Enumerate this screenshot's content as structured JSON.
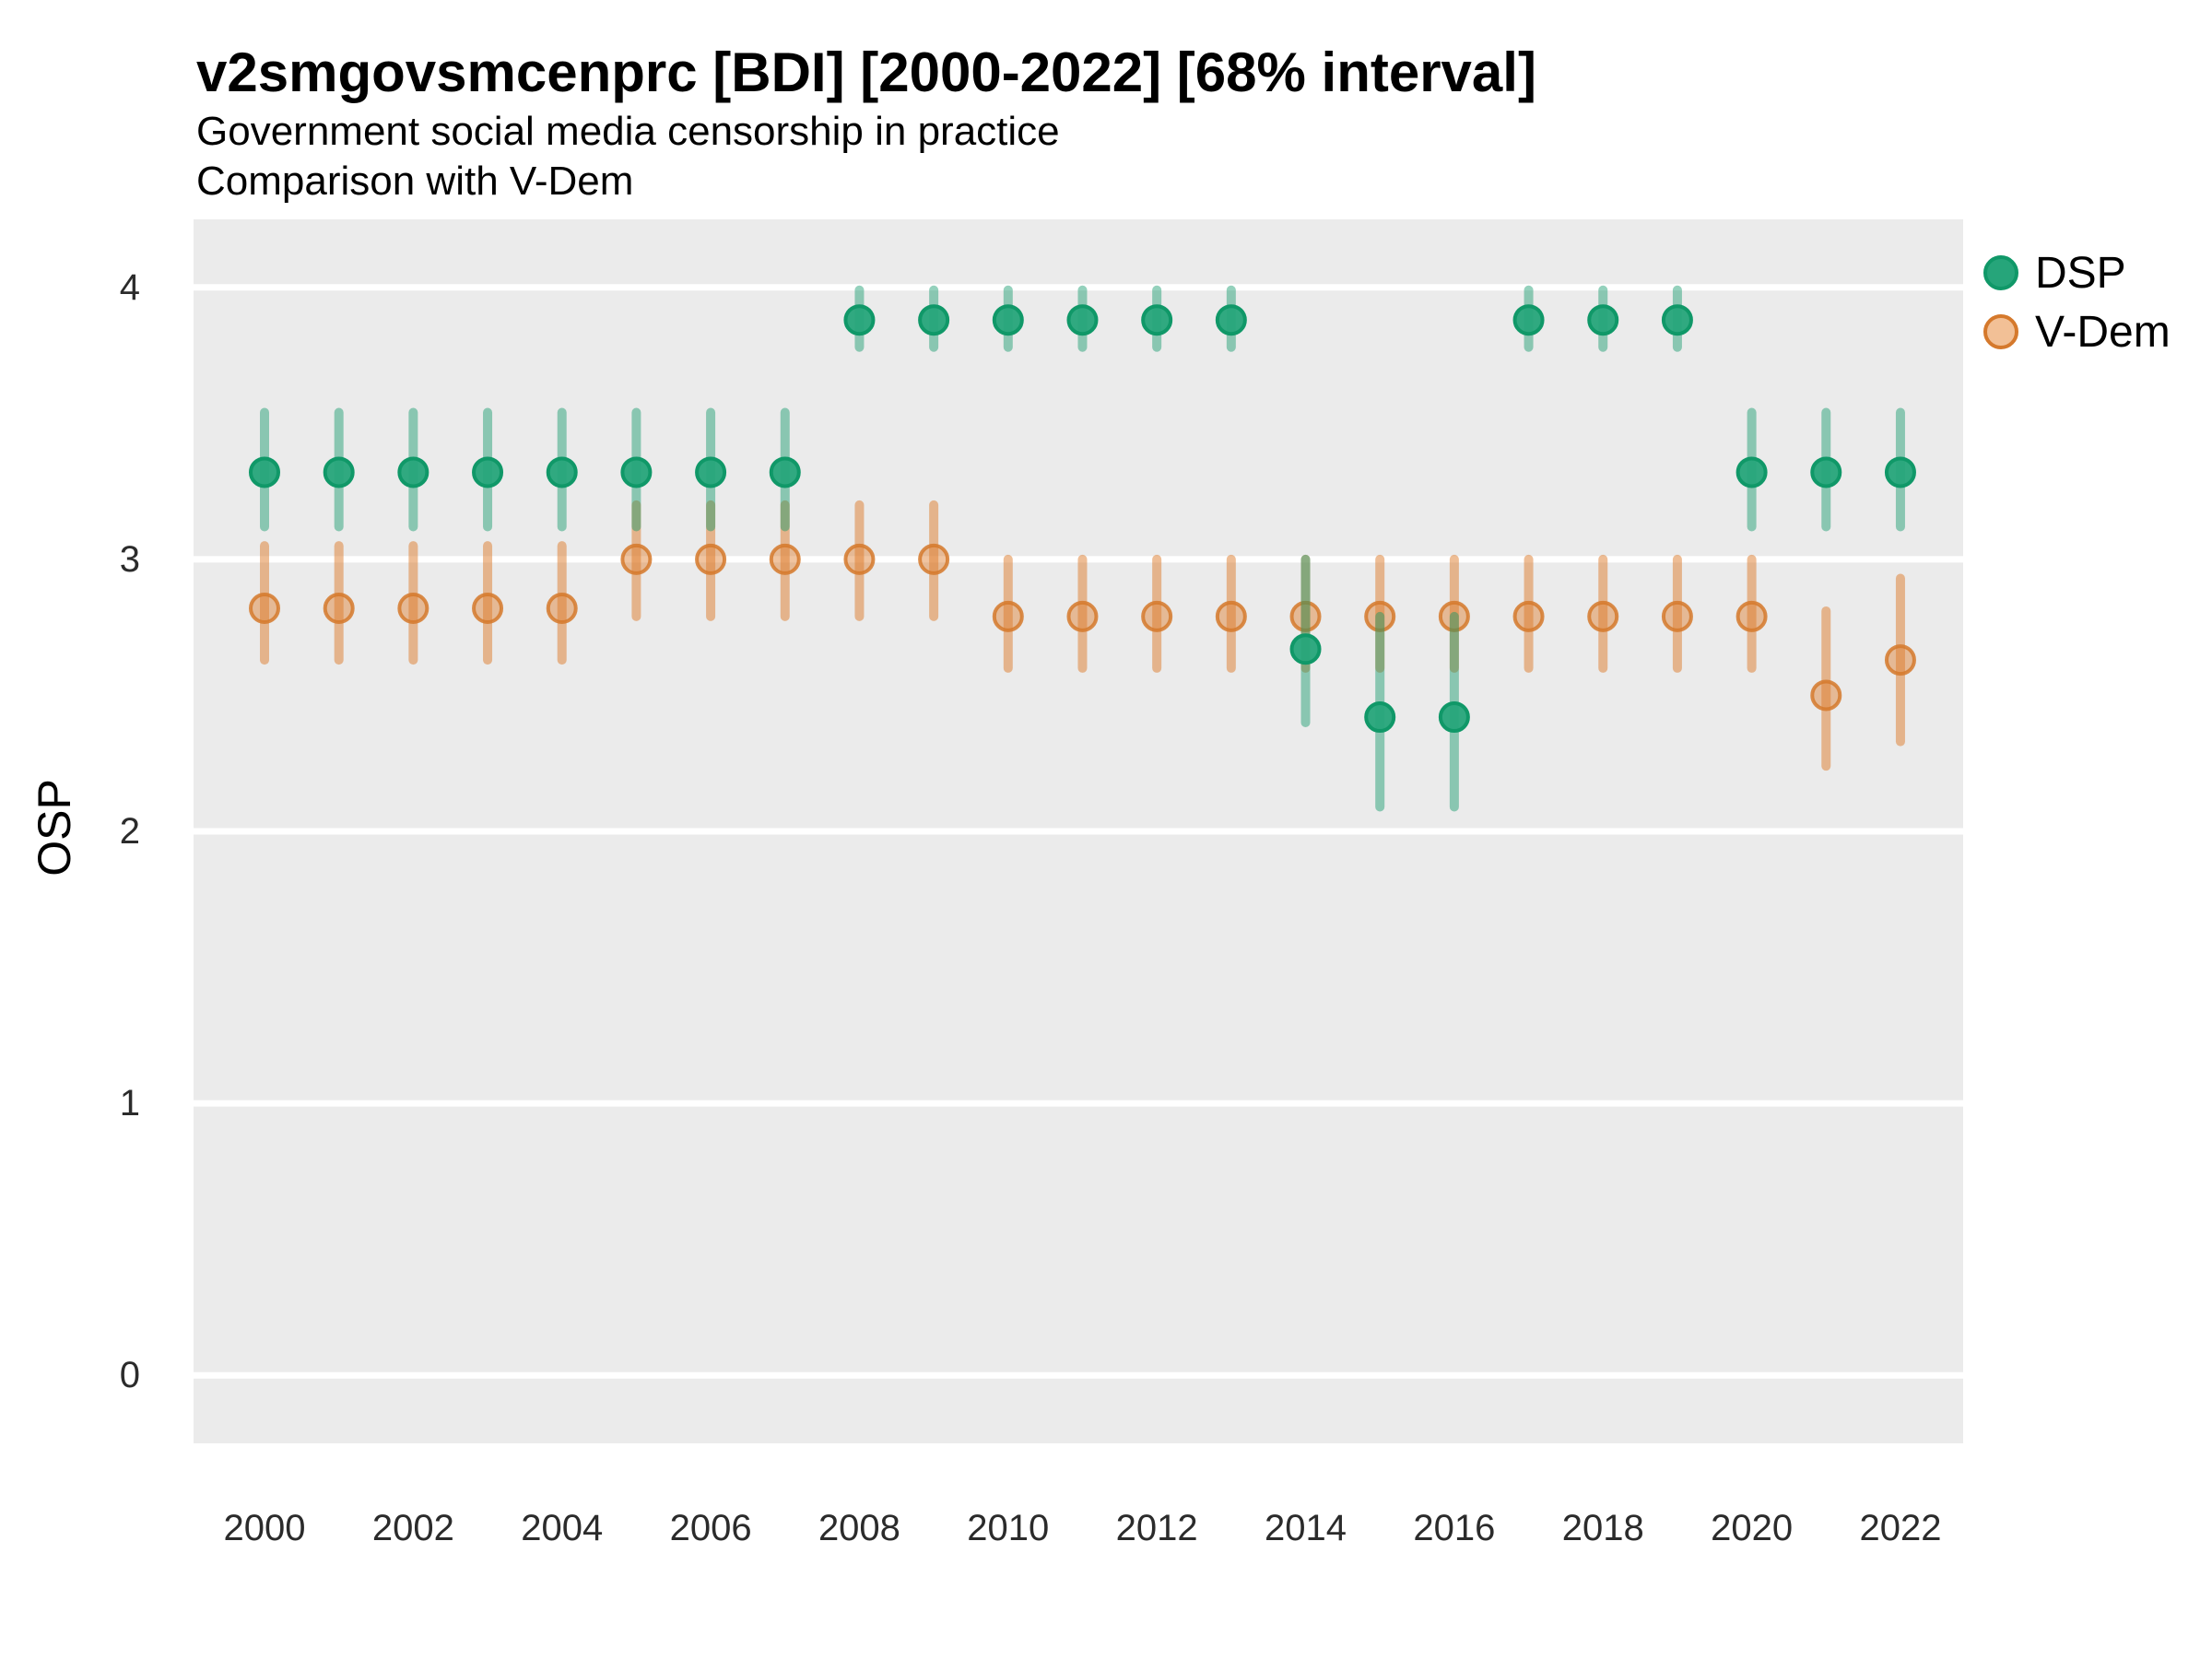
{
  "header": {
    "title": "v2smgovsmcenprc [BDI] [2000-2022] [68% interval]",
    "subtitle_line1": "Government social media censorship in practice",
    "subtitle_line2": "Comparison with V-Dem"
  },
  "legend": {
    "position": "right",
    "items": [
      {
        "label": "DSP",
        "swatch": "green-circle"
      },
      {
        "label": "V-Dem",
        "swatch": "orange-circle"
      }
    ]
  },
  "colors": {
    "dsp": "#26a57a",
    "dsp_stroke": "#109868",
    "dsp_bar": "rgba(18,153,107,0.45)",
    "vdem": "#dd7c2c",
    "vdem_stroke": "#d5792c",
    "vdem_bar": "rgba(221,124,44,0.5)",
    "vdem_fill": "rgba(221,124,44,0.45)",
    "vdem_legend_fill": "#f2c096",
    "panel_bg": "#ebebeb",
    "grid": "#ffffff"
  },
  "chart_data": {
    "type": "scatter",
    "title": "v2smgovsmcenprc [BDI] [2000-2022] [68% interval]",
    "subtitle": "Government social media censorship in practice / Comparison with V-Dem",
    "ylabel": "OSP",
    "xlabel": "",
    "interval": "68%",
    "grid": "major-horizontal-white",
    "legend_position": "right",
    "ylim": [
      -0.25,
      4.25
    ],
    "yticks": [
      0,
      1,
      2,
      3,
      4
    ],
    "xticks": [
      2000,
      2002,
      2004,
      2006,
      2008,
      2010,
      2012,
      2014,
      2016,
      2018,
      2020,
      2022
    ],
    "x": [
      2000,
      2001,
      2002,
      2003,
      2004,
      2005,
      2006,
      2007,
      2008,
      2009,
      2010,
      2011,
      2012,
      2013,
      2014,
      2015,
      2016,
      2017,
      2018,
      2019,
      2020,
      2021,
      2022
    ],
    "series": [
      {
        "name": "DSP",
        "values": [
          3.32,
          3.32,
          3.32,
          3.32,
          3.32,
          3.32,
          3.32,
          3.32,
          3.88,
          3.88,
          3.88,
          3.88,
          3.88,
          3.88,
          2.67,
          2.42,
          2.42,
          3.88,
          3.88,
          3.88,
          3.32,
          3.32,
          3.32
        ],
        "lower": [
          3.12,
          3.12,
          3.12,
          3.12,
          3.12,
          3.12,
          3.12,
          3.12,
          3.78,
          3.78,
          3.78,
          3.78,
          3.78,
          3.78,
          2.4,
          2.09,
          2.09,
          3.78,
          3.78,
          3.78,
          3.12,
          3.12,
          3.12
        ],
        "upper": [
          3.54,
          3.54,
          3.54,
          3.54,
          3.54,
          3.54,
          3.54,
          3.54,
          3.99,
          3.99,
          3.99,
          3.99,
          3.99,
          3.99,
          3.0,
          2.79,
          2.79,
          3.99,
          3.99,
          3.99,
          3.54,
          3.54,
          3.54
        ]
      },
      {
        "name": "V-Dem",
        "values": [
          2.82,
          2.82,
          2.82,
          2.82,
          2.82,
          3.0,
          3.0,
          3.0,
          3.0,
          3.0,
          2.79,
          2.79,
          2.79,
          2.79,
          2.79,
          2.79,
          2.79,
          2.79,
          2.79,
          2.79,
          2.79,
          2.5,
          2.63
        ],
        "lower": [
          2.63,
          2.63,
          2.63,
          2.63,
          2.63,
          2.79,
          2.79,
          2.79,
          2.79,
          2.79,
          2.6,
          2.6,
          2.6,
          2.6,
          2.6,
          2.6,
          2.6,
          2.6,
          2.6,
          2.6,
          2.6,
          2.24,
          2.33
        ],
        "upper": [
          3.05,
          3.05,
          3.05,
          3.05,
          3.05,
          3.2,
          3.2,
          3.2,
          3.2,
          3.2,
          3.0,
          3.0,
          3.0,
          3.0,
          3.0,
          3.0,
          3.0,
          3.0,
          3.0,
          3.0,
          3.0,
          2.81,
          2.93
        ]
      }
    ]
  }
}
